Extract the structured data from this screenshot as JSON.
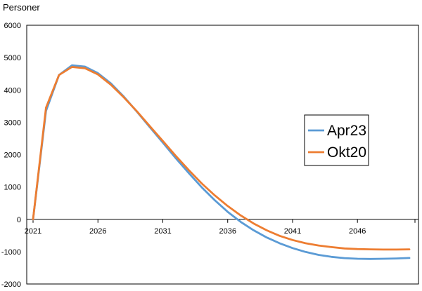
{
  "chart_data": {
    "type": "line",
    "title": "",
    "xlabel": "",
    "ylabel": "Personer",
    "xlim": [
      2021,
      2050
    ],
    "ylim": [
      -2000,
      6000
    ],
    "x_ticks": [
      2021,
      2026,
      2031,
      2036,
      2041,
      2046
    ],
    "x_tick_labels": [
      "2021",
      "2026",
      "2031",
      "2036",
      "2041",
      "2046"
    ],
    "y_ticks": [
      6000,
      5000,
      4000,
      3000,
      2000,
      1000,
      0,
      -1000,
      -2000
    ],
    "y_tick_labels": [
      "6000",
      "5000",
      "4000",
      "3000",
      "2000",
      "1000",
      "0",
      "-1000",
      "-2000"
    ],
    "grid": false,
    "legend_position": "right",
    "x": [
      2021,
      2022,
      2023,
      2024,
      2025,
      2026,
      2027,
      2028,
      2029,
      2030,
      2031,
      2032,
      2033,
      2034,
      2035,
      2036,
      2037,
      2038,
      2039,
      2040,
      2041,
      2042,
      2043,
      2044,
      2045,
      2046,
      2047,
      2048,
      2049,
      2050
    ],
    "series": [
      {
        "name": "Apr23",
        "color": "#5B9BD5",
        "values": [
          0,
          3350,
          4460,
          4760,
          4720,
          4520,
          4200,
          3790,
          3330,
          2850,
          2370,
          1890,
          1430,
          990,
          590,
          230,
          -80,
          -340,
          -560,
          -740,
          -890,
          -1010,
          -1100,
          -1160,
          -1200,
          -1220,
          -1225,
          -1220,
          -1210,
          -1195
        ]
      },
      {
        "name": "Okt20",
        "color": "#ED7D31",
        "values": [
          0,
          3450,
          4460,
          4710,
          4670,
          4480,
          4160,
          3770,
          3340,
          2880,
          2420,
          1960,
          1520,
          1110,
          740,
          410,
          120,
          -130,
          -340,
          -510,
          -640,
          -740,
          -810,
          -860,
          -900,
          -920,
          -930,
          -935,
          -935,
          -930
        ]
      }
    ]
  }
}
